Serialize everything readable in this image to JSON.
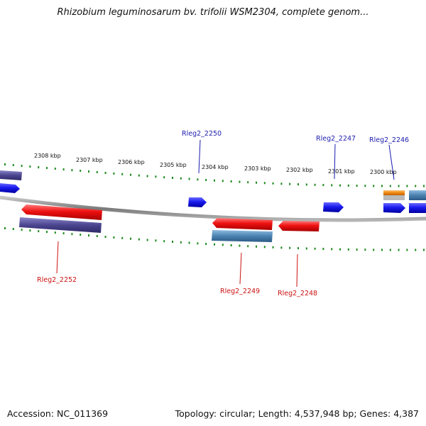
{
  "title": "Rhizobium leguminosarum bv. trifolii WSM2304, complete genom...",
  "accession_text": "Accession: NC_011369",
  "summary_text": "Topology: circular; Length: 4,537,948 bp; Genes: 4,387",
  "colors": {
    "backbone": "#8e8e8e",
    "tick": "#1f8a1f",
    "gene_red": "#ee1111",
    "gene_blue": "#1a1aee",
    "gene_purple": "#4b4590",
    "gene_steel": "#4a82b0",
    "gene_orange": "#f08a10"
  },
  "scale_labels": [
    "2308 kbp",
    "2307 kbp",
    "2306 kbp",
    "2305 kbp",
    "2304 kbp",
    "2303 kbp",
    "2302 kbp",
    "2301 kbp",
    "2300 kbp"
  ],
  "gene_labels": [
    {
      "text": "Rleg2_2250",
      "color": "blue"
    },
    {
      "text": "Rleg2_2247",
      "color": "blue"
    },
    {
      "text": "Rleg2_2246",
      "color": "blue"
    },
    {
      "text": "Rleg2_2252",
      "color": "red"
    },
    {
      "text": "Rleg2_2249",
      "color": "red"
    },
    {
      "text": "Rleg2_2248",
      "color": "red"
    }
  ]
}
